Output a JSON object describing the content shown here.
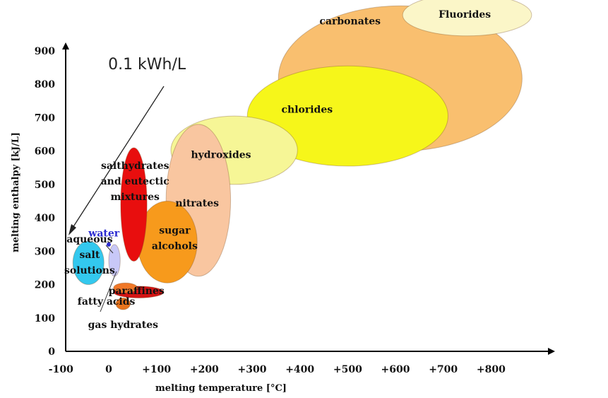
{
  "chart_data": {
    "type": "scatter",
    "xlabel": "melting temperature [°C]",
    "ylabel": "melting enthalpy [kJ/L]",
    "xlim": [
      -100,
      800
    ],
    "ylim": [
      0,
      900
    ],
    "x_ticks": [
      {
        "value": -100,
        "label": "-100"
      },
      {
        "value": 0,
        "label": "0"
      },
      {
        "value": 100,
        "label": "+100"
      },
      {
        "value": 200,
        "label": "+200"
      },
      {
        "value": 300,
        "label": "+300"
      },
      {
        "value": 400,
        "label": "+400"
      },
      {
        "value": 500,
        "label": "+500"
      },
      {
        "value": 600,
        "label": "+600"
      },
      {
        "value": 700,
        "label": "+700"
      },
      {
        "value": 800,
        "label": "+800"
      }
    ],
    "y_ticks": [
      {
        "value": 0,
        "label": "0"
      },
      {
        "value": 100,
        "label": "100"
      },
      {
        "value": 200,
        "label": "200"
      },
      {
        "value": 300,
        "label": "300"
      },
      {
        "value": 400,
        "label": "400"
      },
      {
        "value": 500,
        "label": "500"
      },
      {
        "value": 600,
        "label": "600"
      },
      {
        "value": 700,
        "label": "700"
      },
      {
        "value": 800,
        "label": "800"
      },
      {
        "value": 900,
        "label": "900"
      }
    ],
    "regions": [
      {
        "name": "carbonates",
        "label_lines": [
          "carbonates"
        ],
        "x_range": [
          355,
          865
        ],
        "y_range": [
          600,
          1035
        ],
        "color": "#f9bf6f",
        "label_at": [
          505,
          990
        ]
      },
      {
        "name": "Fluorides",
        "label_lines": [
          "Fluorides"
        ],
        "x_range": [
          615,
          885
        ],
        "y_range": [
          945,
          1070
        ],
        "color": "#fbf6c8",
        "label_at": [
          745,
          1010
        ]
      },
      {
        "name": "chlorides",
        "label_lines": [
          "chlorides"
        ],
        "x_range": [
          290,
          710
        ],
        "y_range": [
          555,
          855
        ],
        "color": "#f6f61a",
        "label_at": [
          415,
          725
        ]
      },
      {
        "name": "hydroxides",
        "label_lines": [
          "hydroxides"
        ],
        "x_range": [
          130,
          395
        ],
        "y_range": [
          500,
          705
        ],
        "color": "#f6f696",
        "label_at": [
          235,
          590
        ]
      },
      {
        "name": "nitrates",
        "label_lines": [
          "nitrates"
        ],
        "x_range": [
          120,
          255
        ],
        "y_range": [
          225,
          680
        ],
        "color": "#f9c6a0",
        "label_at": [
          185,
          445
        ]
      },
      {
        "name": "sugar alcohols",
        "label_lines": [
          "sugar",
          "alcohols"
        ],
        "x_range": [
          60,
          185
        ],
        "y_range": [
          205,
          450
        ],
        "color": "#f79a1c",
        "label_at": [
          138,
          340
        ]
      },
      {
        "name": "salthydrates and eutectic mixtures",
        "label_lines": [
          "salthydrates",
          "and eutectic",
          "mixtures"
        ],
        "x_range": [
          25,
          80
        ],
        "y_range": [
          270,
          610
        ],
        "color": "#e80e0e",
        "label_at": [
          55,
          510
        ]
      },
      {
        "name": "paraffines",
        "label_lines": [
          "paraffines"
        ],
        "x_range": [
          10,
          115
        ],
        "y_range": [
          160,
          195
        ],
        "color": "#d41414",
        "label_at": [
          58,
          182
        ]
      },
      {
        "name": "fatty acids",
        "label_lines": [
          "fatty acids"
        ],
        "x_range": [
          10,
          60
        ],
        "y_range": [
          175,
          205
        ],
        "color": "#f07828",
        "label_at": [
          -5,
          150
        ]
      },
      {
        "name": "gas hydrates",
        "label_lines": [
          "gas hydrates"
        ],
        "x_range": [
          15,
          45
        ],
        "y_range": [
          125,
          160
        ],
        "color": "#e8741c",
        "label_at": [
          30,
          80
        ]
      },
      {
        "name": "aqueous salt solutions",
        "label_lines": [
          "aqueous",
          "salt",
          "solutions"
        ],
        "x_range": [
          -75,
          -10
        ],
        "y_range": [
          200,
          330
        ],
        "color": "#33c8ee",
        "label_at": [
          -40,
          290
        ]
      },
      {
        "name": "water",
        "label_lines": [
          "water"
        ],
        "x_range": [
          0,
          24
        ],
        "y_range": [
          225,
          320
        ],
        "color": "#c8c8f8",
        "label_at": [
          -10,
          355
        ]
      }
    ],
    "points": [
      {
        "name": "water",
        "x": 0,
        "y": 320,
        "color": "#2a2ad0"
      }
    ],
    "annotations": [
      {
        "text": "0.1 kWh/L",
        "at": [
          80,
          845
        ]
      }
    ]
  }
}
